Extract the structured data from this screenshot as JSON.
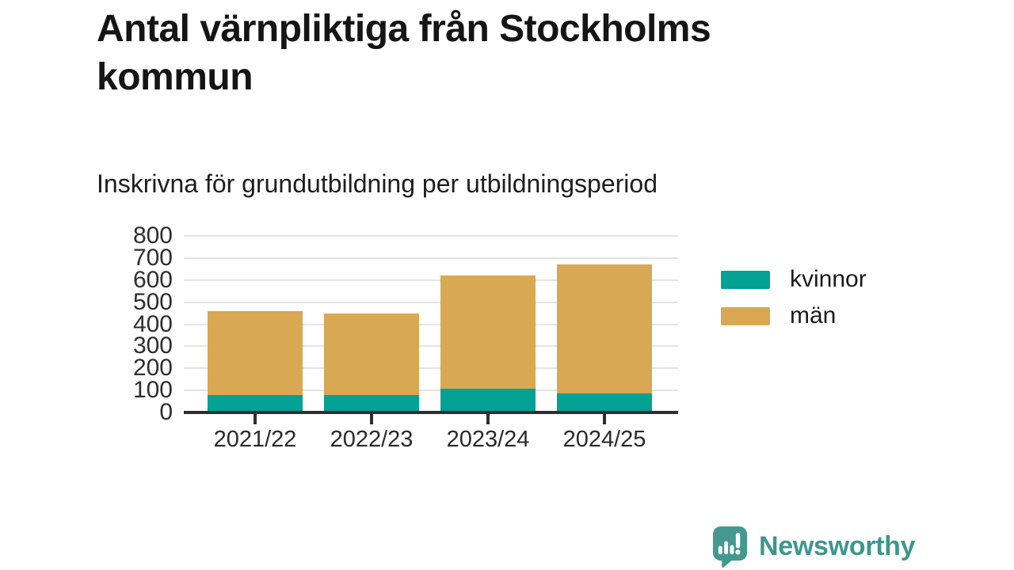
{
  "page": {
    "title": "Antal värnpliktiga från Stockholms kommun",
    "subtitle": "Inskrivna för grundutbildning per utbildningsperiod"
  },
  "chart_data": {
    "type": "bar",
    "stacked": true,
    "title": "Antal värnpliktiga från Stockholms kommun",
    "subtitle": "Inskrivna för grundutbildning per utbildningsperiod",
    "categories": [
      "2021/22",
      "2022/23",
      "2023/24",
      "2024/25"
    ],
    "series": [
      {
        "name": "kvinnor",
        "color": "#04a195",
        "values": [
          80,
          80,
          108,
          87
        ]
      },
      {
        "name": "män",
        "color": "#d8a853",
        "values": [
          378,
          367,
          512,
          585
        ]
      }
    ],
    "xlabel": "",
    "ylabel": "",
    "ylim": [
      0,
      800
    ],
    "ytick_step": 100,
    "grid": true,
    "gridline_color": "#e4e4e4",
    "axis_color": "#2e2e2e",
    "legend_position": "right"
  },
  "branding": {
    "logo_text": "Newsworthy",
    "logo_color": "#3d968e",
    "logo_icon": "newsworthy-speech-bubble-bar-chart-icon"
  }
}
